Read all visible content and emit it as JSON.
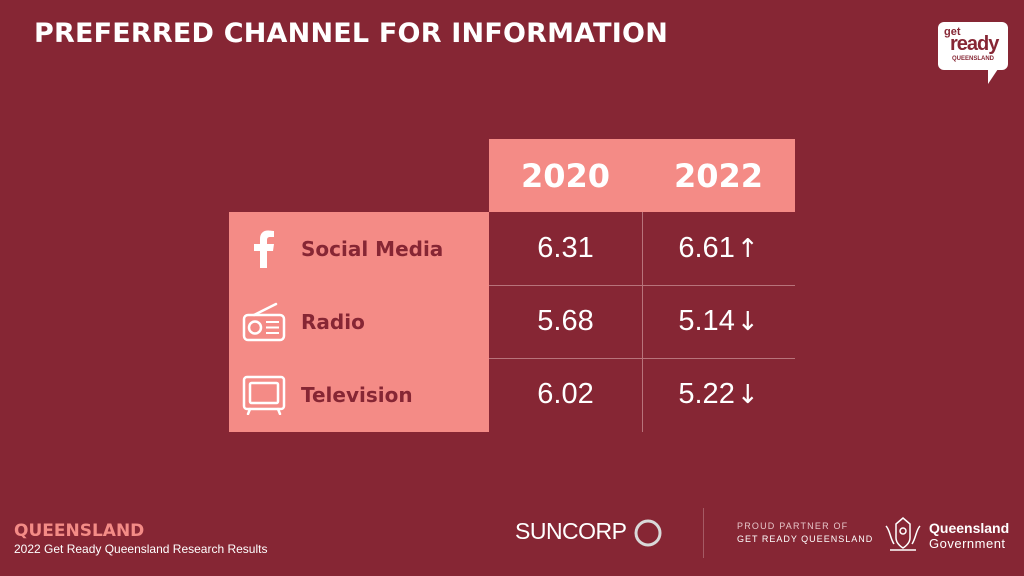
{
  "title": "PREFERRED CHANNEL FOR INFORMATION",
  "logo": {
    "get": "get",
    "ready": "ready",
    "region": "QUEENSLAND"
  },
  "chart_data": {
    "type": "table",
    "columns": [
      "2020",
      "2022"
    ],
    "rows": [
      {
        "label": "Social Media",
        "icon": "facebook-icon",
        "values": [
          "6.31",
          "6.61"
        ],
        "trend": "↑"
      },
      {
        "label": "Radio",
        "icon": "radio-icon",
        "values": [
          "5.68",
          "5.14"
        ],
        "trend": "↓"
      },
      {
        "label": "Television",
        "icon": "television-icon",
        "values": [
          "6.02",
          "5.22"
        ],
        "trend": "↓"
      }
    ]
  },
  "colors": {
    "background": "#862634",
    "accent": "#f48b86",
    "text_dark": "#862634"
  },
  "footer": {
    "brand": "QUEENSLAND",
    "subtitle": "2022 Get Ready Queensland Research Results",
    "sponsor": "SUNCORP",
    "partner_line1": "PROUD PARTNER OF",
    "partner_line2": "GET READY QUEENSLAND",
    "gov_line1": "Queensland",
    "gov_line2": "Government"
  }
}
